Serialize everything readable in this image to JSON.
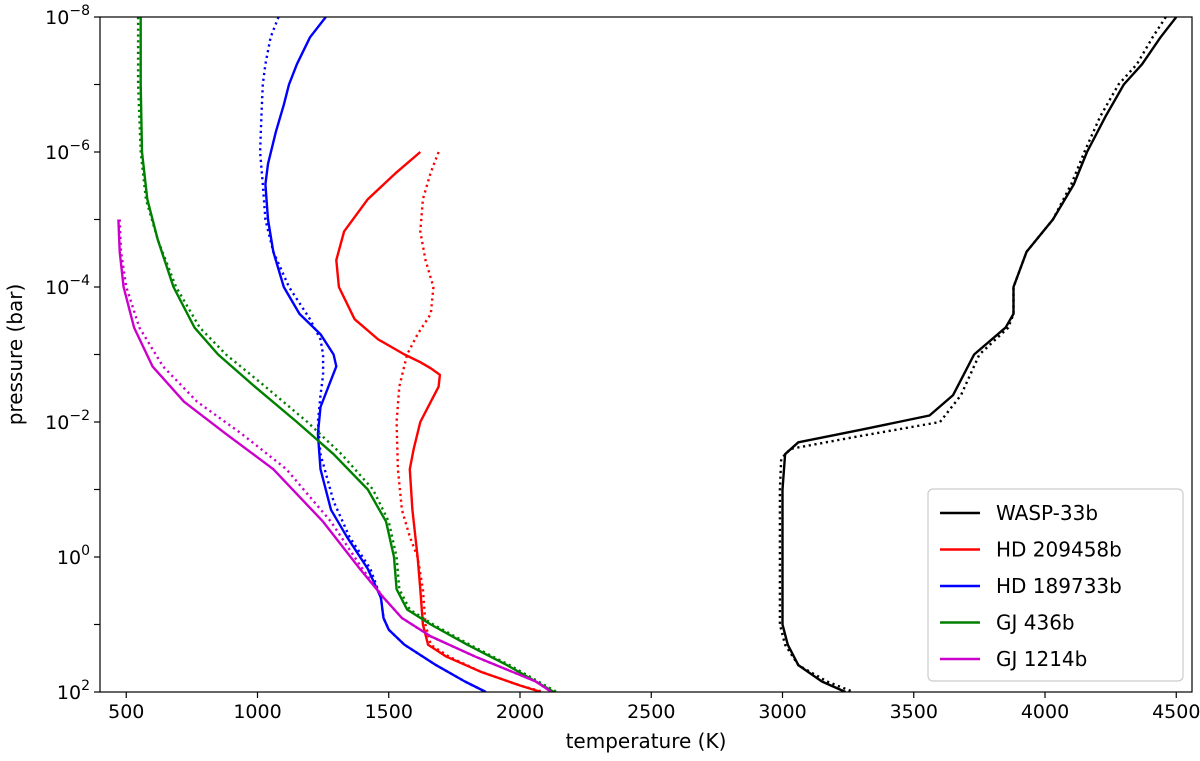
{
  "chart_data": {
    "type": "line",
    "xlabel": "temperature (K)",
    "ylabel": "pressure (bar)",
    "xlim": [
      400,
      4560
    ],
    "ylim": [
      100,
      1e-08
    ],
    "yscale": "log",
    "grid": false,
    "legend_position": "lower-right",
    "x_ticks": [
      {
        "value": 500,
        "label": "500"
      },
      {
        "value": 1000,
        "label": "1000"
      },
      {
        "value": 1500,
        "label": "1500"
      },
      {
        "value": 2000,
        "label": "2000"
      },
      {
        "value": 2500,
        "label": "2500"
      },
      {
        "value": 3000,
        "label": "3000"
      },
      {
        "value": 3500,
        "label": "3500"
      },
      {
        "value": 4000,
        "label": "4000"
      },
      {
        "value": 4500,
        "label": "4500"
      }
    ],
    "y_ticks": [
      {
        "value": 1e-08,
        "base": "10",
        "exp": "−8"
      },
      {
        "value": 1e-06,
        "base": "10",
        "exp": "−6"
      },
      {
        "value": 0.0001,
        "base": "10",
        "exp": "−4"
      },
      {
        "value": 0.01,
        "base": "10",
        "exp": "−2"
      },
      {
        "value": 1,
        "base": "10",
        "exp": "0"
      },
      {
        "value": 100,
        "base": "10",
        "exp": "2"
      }
    ],
    "series": [
      {
        "name": "WASP-33b",
        "color": "#000000",
        "solid": [
          [
            4500,
            1e-08
          ],
          [
            4440,
            2e-08
          ],
          [
            4370,
            5e-08
          ],
          [
            4300,
            1e-07
          ],
          [
            4230,
            3e-07
          ],
          [
            4160,
            1e-06
          ],
          [
            4110,
            3e-06
          ],
          [
            4030,
            1e-05
          ],
          [
            3930,
            3e-05
          ],
          [
            3880,
            0.0001
          ],
          [
            3880,
            0.00025
          ],
          [
            3850,
            0.0004
          ],
          [
            3730,
            0.001
          ],
          [
            3650,
            0.004
          ],
          [
            3560,
            0.008
          ],
          [
            3300,
            0.013
          ],
          [
            3060,
            0.02
          ],
          [
            3010,
            0.03
          ],
          [
            3000,
            0.1
          ],
          [
            3000,
            1
          ],
          [
            3000,
            10
          ],
          [
            3020,
            20
          ],
          [
            3060,
            40
          ],
          [
            3150,
            70
          ],
          [
            3240,
            100
          ]
        ],
        "dotted": [
          [
            4460,
            1e-08
          ],
          [
            4410,
            2e-08
          ],
          [
            4350,
            5e-08
          ],
          [
            4280,
            1e-07
          ],
          [
            4210,
            3e-07
          ],
          [
            4150,
            1e-06
          ],
          [
            4100,
            3e-06
          ],
          [
            4030,
            1e-05
          ],
          [
            3930,
            3e-05
          ],
          [
            3880,
            0.0001
          ],
          [
            3880,
            0.00025
          ],
          [
            3860,
            0.0004
          ],
          [
            3750,
            0.001
          ],
          [
            3680,
            0.004
          ],
          [
            3600,
            0.01
          ],
          [
            3300,
            0.016
          ],
          [
            3030,
            0.025
          ],
          [
            2995,
            0.035
          ],
          [
            2990,
            0.1
          ],
          [
            2990,
            1
          ],
          [
            2990,
            10
          ],
          [
            3010,
            20
          ],
          [
            3060,
            40
          ],
          [
            3170,
            70
          ],
          [
            3270,
            100
          ]
        ]
      },
      {
        "name": "HD 209458b",
        "color": "#ff0000",
        "solid": [
          [
            1620,
            1e-06
          ],
          [
            1530,
            2e-06
          ],
          [
            1420,
            5e-06
          ],
          [
            1330,
            1.5e-05
          ],
          [
            1300,
            4e-05
          ],
          [
            1310,
            0.0001
          ],
          [
            1370,
            0.0003
          ],
          [
            1460,
            0.0006
          ],
          [
            1560,
            0.001
          ],
          [
            1620,
            0.0013
          ],
          [
            1660,
            0.0016
          ],
          [
            1695,
            0.002
          ],
          [
            1690,
            0.003
          ],
          [
            1660,
            0.005
          ],
          [
            1620,
            0.01
          ],
          [
            1595,
            0.025
          ],
          [
            1580,
            0.05
          ],
          [
            1590,
            0.2
          ],
          [
            1610,
            1
          ],
          [
            1620,
            3
          ],
          [
            1630,
            10
          ],
          [
            1650,
            20
          ],
          [
            1720,
            30
          ],
          [
            1850,
            50
          ],
          [
            2000,
            80
          ],
          [
            2080,
            100
          ]
        ],
        "dotted": [
          [
            1690,
            1e-06
          ],
          [
            1660,
            2e-06
          ],
          [
            1630,
            5e-06
          ],
          [
            1620,
            1.5e-05
          ],
          [
            1640,
            4e-05
          ],
          [
            1670,
            0.0001
          ],
          [
            1660,
            0.00025
          ],
          [
            1610,
            0.0005
          ],
          [
            1570,
            0.001
          ],
          [
            1540,
            0.003
          ],
          [
            1530,
            0.01
          ],
          [
            1535,
            0.05
          ],
          [
            1550,
            0.2
          ],
          [
            1580,
            0.5
          ],
          [
            1610,
            1
          ],
          [
            1630,
            3
          ],
          [
            1640,
            10
          ],
          [
            1660,
            20
          ],
          [
            1730,
            30
          ],
          [
            1850,
            50
          ],
          [
            2000,
            80
          ],
          [
            2090,
            100
          ]
        ]
      },
      {
        "name": "HD 189733b",
        "color": "#0000ff",
        "solid": [
          [
            1260,
            1e-08
          ],
          [
            1200,
            2e-08
          ],
          [
            1150,
            5e-08
          ],
          [
            1120,
            1e-07
          ],
          [
            1100,
            2e-07
          ],
          [
            1070,
            5e-07
          ],
          [
            1040,
            1.5e-06
          ],
          [
            1030,
            3e-06
          ],
          [
            1040,
            1e-05
          ],
          [
            1060,
            3e-05
          ],
          [
            1100,
            0.0001
          ],
          [
            1160,
            0.00025
          ],
          [
            1240,
            0.0005
          ],
          [
            1290,
            0.001
          ],
          [
            1300,
            0.0015
          ],
          [
            1270,
            0.003
          ],
          [
            1240,
            0.006
          ],
          [
            1230,
            0.015
          ],
          [
            1240,
            0.05
          ],
          [
            1280,
            0.2
          ],
          [
            1340,
            0.5
          ],
          [
            1420,
            1.5
          ],
          [
            1470,
            4
          ],
          [
            1480,
            8
          ],
          [
            1500,
            12
          ],
          [
            1560,
            20
          ],
          [
            1680,
            40
          ],
          [
            1790,
            70
          ],
          [
            1870,
            100
          ]
        ],
        "dotted": [
          [
            1080,
            1e-08
          ],
          [
            1050,
            2e-08
          ],
          [
            1030,
            5e-08
          ],
          [
            1020,
            1e-07
          ],
          [
            1015,
            3e-07
          ],
          [
            1010,
            1e-06
          ],
          [
            1020,
            3e-06
          ],
          [
            1030,
            1e-05
          ],
          [
            1060,
            3e-05
          ],
          [
            1120,
            0.0001
          ],
          [
            1200,
            0.0003
          ],
          [
            1240,
            0.0006
          ],
          [
            1250,
            0.001
          ],
          [
            1250,
            0.002
          ],
          [
            1240,
            0.004
          ],
          [
            1230,
            0.01
          ],
          [
            1240,
            0.03
          ],
          [
            1290,
            0.15
          ],
          [
            1350,
            0.5
          ],
          [
            1430,
            1.5
          ],
          [
            1470,
            4
          ],
          [
            1480,
            8
          ],
          [
            1500,
            12
          ],
          [
            1560,
            20
          ],
          [
            1680,
            40
          ],
          [
            1790,
            70
          ],
          [
            1870,
            100
          ]
        ]
      },
      {
        "name": "GJ 436b",
        "color": "#008000",
        "solid": [
          [
            555,
            1e-08
          ],
          [
            555,
            1e-07
          ],
          [
            560,
            1e-06
          ],
          [
            580,
            5e-06
          ],
          [
            620,
            2e-05
          ],
          [
            680,
            0.0001
          ],
          [
            760,
            0.0004
          ],
          [
            850,
            0.001
          ],
          [
            990,
            0.003
          ],
          [
            1150,
            0.01
          ],
          [
            1290,
            0.03
          ],
          [
            1420,
            0.1
          ],
          [
            1490,
            0.3
          ],
          [
            1520,
            1
          ],
          [
            1530,
            3
          ],
          [
            1570,
            6
          ],
          [
            1660,
            10
          ],
          [
            1800,
            20
          ],
          [
            1950,
            40
          ],
          [
            2060,
            70
          ],
          [
            2130,
            100
          ]
        ],
        "dotted": [
          [
            545,
            1e-08
          ],
          [
            545,
            1e-07
          ],
          [
            555,
            1e-06
          ],
          [
            575,
            5e-06
          ],
          [
            620,
            2e-05
          ],
          [
            690,
            0.0001
          ],
          [
            780,
            0.0004
          ],
          [
            880,
            0.001
          ],
          [
            1030,
            0.003
          ],
          [
            1190,
            0.01
          ],
          [
            1320,
            0.03
          ],
          [
            1440,
            0.1
          ],
          [
            1500,
            0.3
          ],
          [
            1530,
            1
          ],
          [
            1540,
            3
          ],
          [
            1580,
            6
          ],
          [
            1670,
            10
          ],
          [
            1810,
            20
          ],
          [
            1960,
            40
          ],
          [
            2070,
            70
          ],
          [
            2140,
            100
          ]
        ]
      },
      {
        "name": "GJ 1214b",
        "color": "#cc00cc",
        "solid": [
          [
            470,
            1e-05
          ],
          [
            475,
            3e-05
          ],
          [
            490,
            0.0001
          ],
          [
            530,
            0.0004
          ],
          [
            600,
            0.0015
          ],
          [
            720,
            0.005
          ],
          [
            880,
            0.015
          ],
          [
            1060,
            0.05
          ],
          [
            1250,
            0.3
          ],
          [
            1390,
            1.5
          ],
          [
            1480,
            4
          ],
          [
            1550,
            8
          ],
          [
            1660,
            15
          ],
          [
            1830,
            30
          ],
          [
            1970,
            50
          ],
          [
            2060,
            70
          ],
          [
            2120,
            100
          ]
        ],
        "dotted": [
          [
            475,
            1e-05
          ],
          [
            480,
            3e-05
          ],
          [
            500,
            0.0001
          ],
          [
            550,
            0.0004
          ],
          [
            640,
            0.0015
          ],
          [
            770,
            0.005
          ],
          [
            940,
            0.015
          ],
          [
            1110,
            0.05
          ],
          [
            1280,
            0.3
          ],
          [
            1400,
            1.5
          ],
          [
            1480,
            4
          ],
          [
            1550,
            8
          ],
          [
            1660,
            15
          ],
          [
            1830,
            30
          ],
          [
            1970,
            50
          ],
          [
            2060,
            70
          ],
          [
            2120,
            100
          ]
        ]
      }
    ]
  }
}
